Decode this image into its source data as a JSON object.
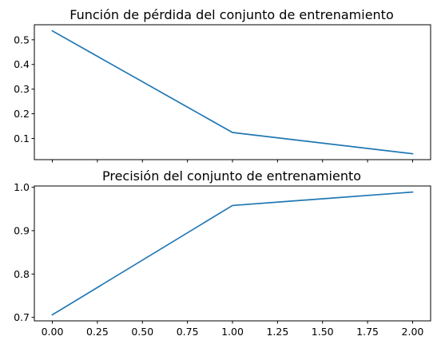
{
  "chart_data": [
    {
      "type": "line",
      "title": "Función de pérdida del conjunto de entrenamiento",
      "xlabel": "",
      "ylabel": "",
      "x": [
        0,
        1,
        2
      ],
      "series": [
        {
          "values": [
            0.536,
            0.124,
            0.038
          ],
          "color": "#1f77b4"
        }
      ],
      "xlim": [
        -0.1,
        2.1
      ],
      "ylim": [
        0.014,
        0.561
      ],
      "yticks": [
        0.1,
        0.2,
        0.3,
        0.4,
        0.5
      ],
      "ytick_labels": [
        "0.1",
        "0.2",
        "0.3",
        "0.4",
        "0.5"
      ],
      "xticks": [
        0,
        0.25,
        0.5,
        0.75,
        1,
        1.25,
        1.5,
        1.75,
        2
      ],
      "xtick_labels": [],
      "grid": false,
      "legend": "none"
    },
    {
      "type": "line",
      "title": "Precisión del conjunto de entrenamiento",
      "xlabel": "",
      "ylabel": "",
      "x": [
        0,
        1,
        2
      ],
      "series": [
        {
          "values": [
            0.706,
            0.958,
            0.989
          ],
          "color": "#1f77b4"
        }
      ],
      "xlim": [
        -0.1,
        2.1
      ],
      "ylim": [
        0.692,
        1.003
      ],
      "yticks": [
        0.7,
        0.8,
        0.9,
        1.0
      ],
      "ytick_labels": [
        "0.7",
        "0.8",
        "0.9",
        "1.0"
      ],
      "xticks": [
        0,
        0.25,
        0.5,
        0.75,
        1,
        1.25,
        1.5,
        1.75,
        2
      ],
      "xtick_labels": [
        "0.00",
        "0.25",
        "0.50",
        "0.75",
        "1.00",
        "1.25",
        "1.50",
        "1.75",
        "2.00"
      ],
      "grid": false,
      "legend": "none"
    }
  ]
}
